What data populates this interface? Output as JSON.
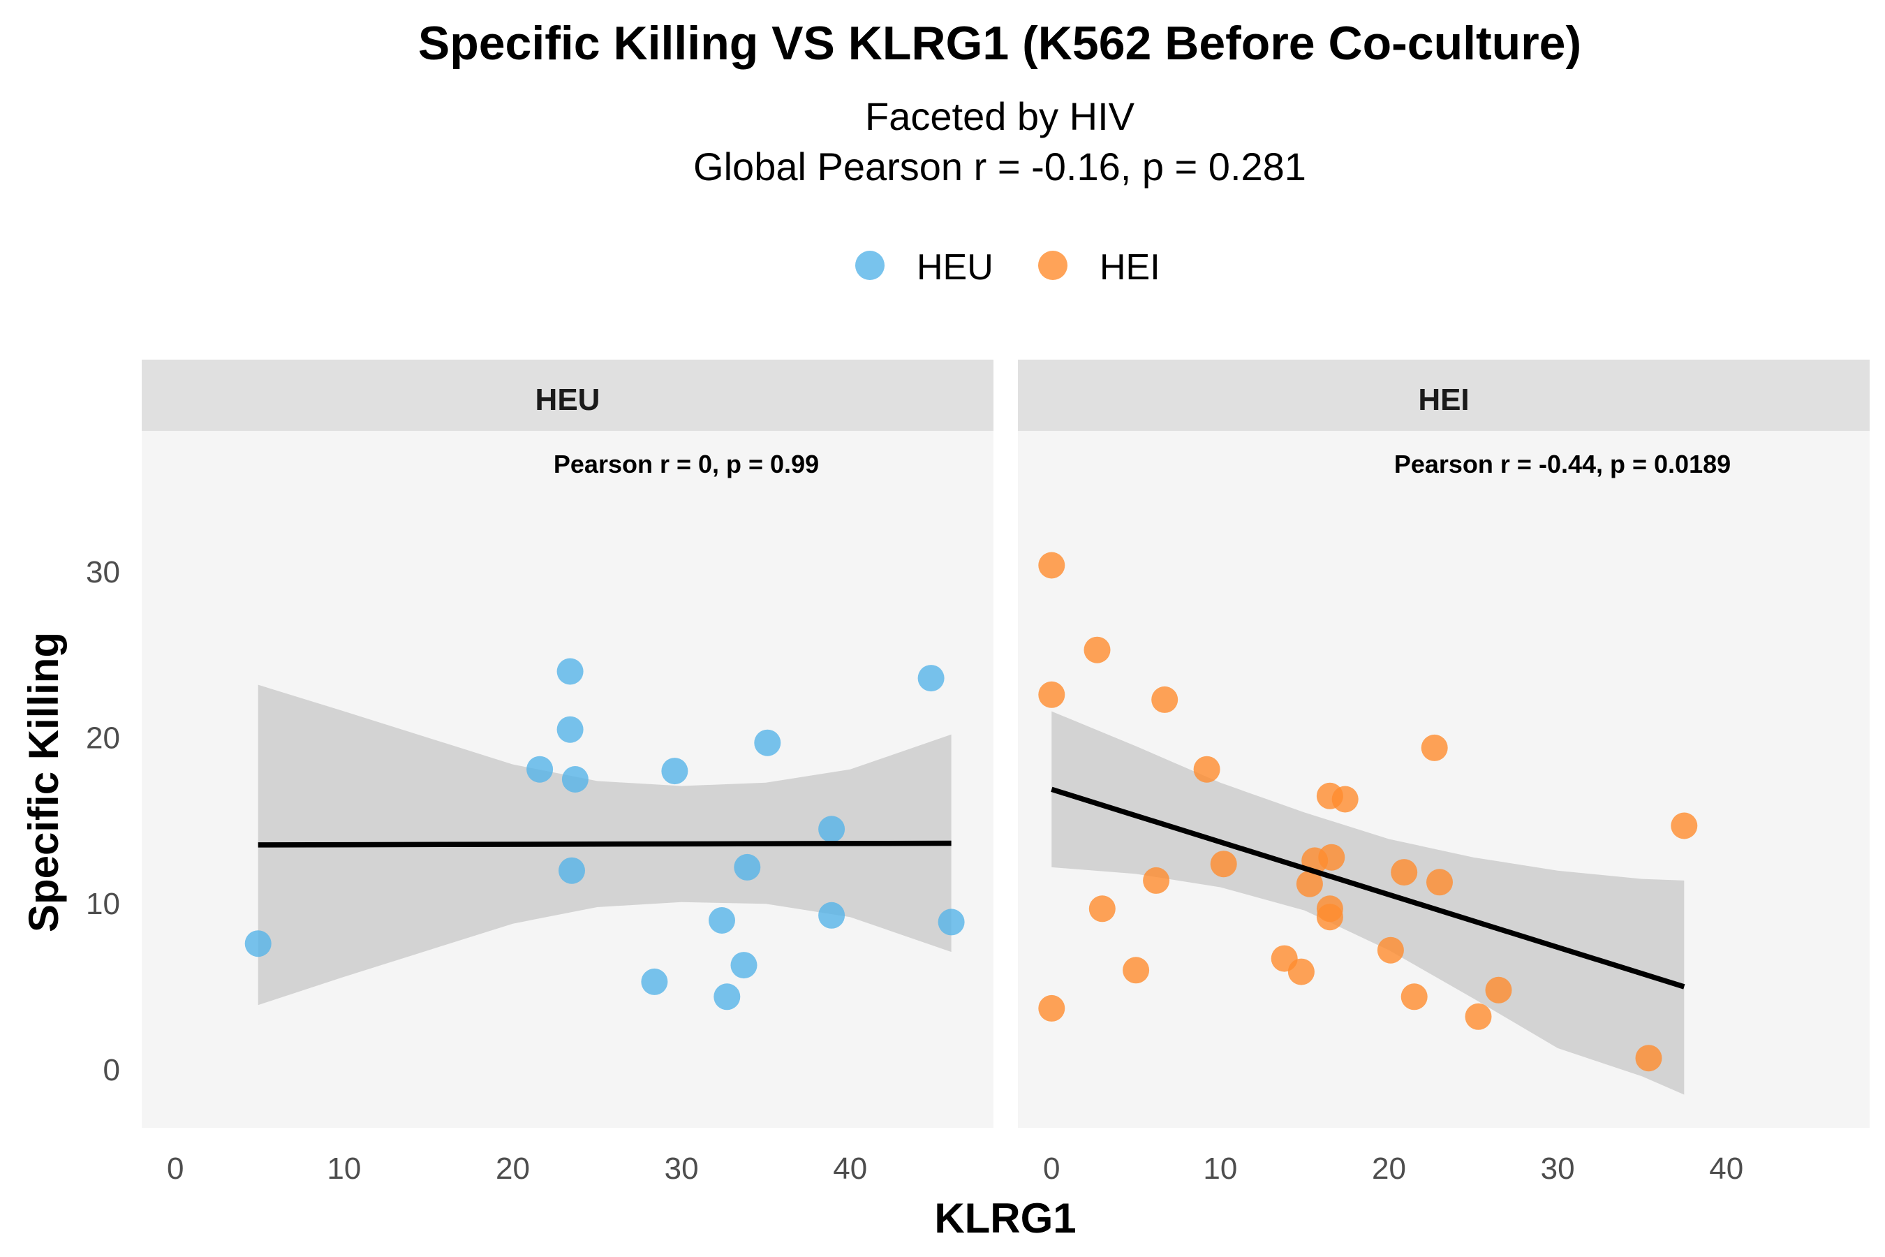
{
  "chart_data": {
    "type": "scatter",
    "title": "Specific Killing VS KLRG1 (K562 Before Co-culture)",
    "subtitle_line1": "Faceted by HIV",
    "subtitle_line2": "Global Pearson r = -0.16, p = 0.281",
    "xlabel": "KLRG1",
    "ylabel": "Specific Killing",
    "xlim": [
      -2,
      48.5
    ],
    "ylim": [
      -3.5,
      38.5
    ],
    "x_ticks": [
      0,
      10,
      20,
      30,
      40
    ],
    "y_ticks": [
      0,
      10,
      20,
      30
    ],
    "legend": {
      "position": "top",
      "entries": [
        {
          "name": "HEU",
          "color": "#56B4E9"
        },
        {
          "name": "HEI",
          "color": "#FF8C2E"
        }
      ]
    },
    "facets": [
      {
        "label": "HEU",
        "color": "#56B4E9",
        "annotation": "Pearson r = 0, p = 0.99",
        "fit": {
          "x": [
            4.9,
            46.0
          ],
          "y": [
            13.55,
            13.65
          ]
        },
        "band": {
          "x": [
            4.9,
            10,
            15,
            20,
            25,
            30,
            35,
            40,
            46
          ],
          "lower": [
            3.9,
            5.6,
            7.2,
            8.8,
            9.8,
            10.1,
            10.0,
            9.2,
            7.1
          ],
          "upper": [
            23.2,
            21.6,
            20.0,
            18.4,
            17.4,
            17.1,
            17.3,
            18.1,
            20.2
          ]
        },
        "points": [
          {
            "x": 4.9,
            "y": 7.6
          },
          {
            "x": 21.6,
            "y": 18.1
          },
          {
            "x": 23.4,
            "y": 24.0
          },
          {
            "x": 23.4,
            "y": 20.5
          },
          {
            "x": 23.7,
            "y": 17.5
          },
          {
            "x": 23.5,
            "y": 12.0
          },
          {
            "x": 28.4,
            "y": 5.3
          },
          {
            "x": 29.6,
            "y": 18.0
          },
          {
            "x": 32.4,
            "y": 9.0
          },
          {
            "x": 32.7,
            "y": 4.4
          },
          {
            "x": 33.7,
            "y": 6.3
          },
          {
            "x": 33.9,
            "y": 12.2
          },
          {
            "x": 35.1,
            "y": 19.7
          },
          {
            "x": 38.9,
            "y": 14.5
          },
          {
            "x": 38.9,
            "y": 9.3
          },
          {
            "x": 44.8,
            "y": 23.6
          },
          {
            "x": 46.0,
            "y": 8.9
          }
        ]
      },
      {
        "label": "HEI",
        "color": "#FF8C2E",
        "annotation": "Pearson r = -0.44, p = 0.0189",
        "fit": {
          "x": [
            0.0,
            37.5
          ],
          "y": [
            16.9,
            5.0
          ]
        },
        "band": {
          "x": [
            0,
            5,
            10,
            15,
            20,
            25,
            30,
            35,
            37.5
          ],
          "lower": [
            12.2,
            11.8,
            11.0,
            9.6,
            7.2,
            4.3,
            1.3,
            -0.4,
            -1.5
          ],
          "upper": [
            21.6,
            19.5,
            17.3,
            15.5,
            13.9,
            12.8,
            12.0,
            11.5,
            11.4
          ]
        },
        "points": [
          {
            "x": 0.0,
            "y": 30.4
          },
          {
            "x": 0.0,
            "y": 22.6
          },
          {
            "x": 0.0,
            "y": 3.7
          },
          {
            "x": 2.7,
            "y": 25.3
          },
          {
            "x": 3.0,
            "y": 9.7
          },
          {
            "x": 5.0,
            "y": 6.0
          },
          {
            "x": 6.2,
            "y": 11.4
          },
          {
            "x": 6.7,
            "y": 22.3
          },
          {
            "x": 9.2,
            "y": 18.1
          },
          {
            "x": 10.2,
            "y": 12.4
          },
          {
            "x": 13.8,
            "y": 6.7
          },
          {
            "x": 14.8,
            "y": 5.9
          },
          {
            "x": 15.3,
            "y": 11.2
          },
          {
            "x": 15.6,
            "y": 12.6
          },
          {
            "x": 16.5,
            "y": 16.5
          },
          {
            "x": 16.6,
            "y": 12.8
          },
          {
            "x": 16.5,
            "y": 9.7
          },
          {
            "x": 16.5,
            "y": 9.2
          },
          {
            "x": 17.4,
            "y": 16.3
          },
          {
            "x": 20.1,
            "y": 7.2
          },
          {
            "x": 20.9,
            "y": 11.9
          },
          {
            "x": 21.5,
            "y": 4.4
          },
          {
            "x": 22.7,
            "y": 19.4
          },
          {
            "x": 23.0,
            "y": 11.3
          },
          {
            "x": 25.3,
            "y": 3.2
          },
          {
            "x": 26.5,
            "y": 4.8
          },
          {
            "x": 35.4,
            "y": 0.7
          },
          {
            "x": 37.5,
            "y": 14.7
          }
        ]
      }
    ]
  }
}
